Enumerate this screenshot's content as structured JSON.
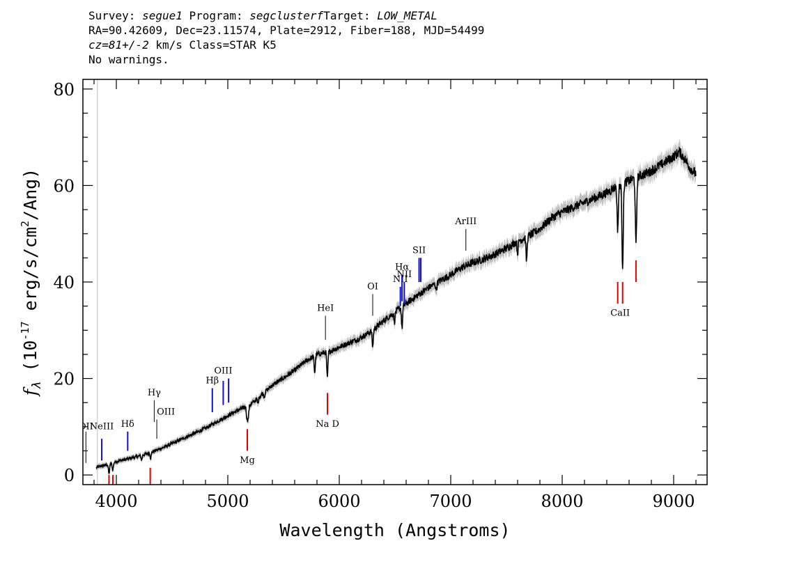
{
  "header": {
    "line1": {
      "survey_label": "Survey:",
      "survey": "segue1",
      "program_label": "Program:",
      "program": "segclusterf",
      "target_label": "Target:",
      "target": "LOW_METAL"
    },
    "line2": "RA=90.42609, Dec=23.11574, Plate=2912, Fiber=188, MJD=54499",
    "line3": {
      "cz": "cz=81+/-2",
      "rest": " km/s Class=STAR K5"
    },
    "line4": "No warnings."
  },
  "chart_data": {
    "type": "line",
    "title": "",
    "xlabel": "Wavelength (Angstroms)",
    "ylabel_prefix": "f",
    "ylabel_subscript": "λ",
    "ylabel_main": " (10",
    "ylabel_exponent": "-17",
    "ylabel_units": " erg/s/cm",
    "ylabel_exponent2": "2",
    "ylabel_tail": "/Ang)",
    "xlim": [
      3700,
      9300
    ],
    "ylim": [
      -2,
      82
    ],
    "x_ticks": [
      4000,
      5000,
      6000,
      7000,
      8000,
      9000
    ],
    "x_tick_labels": [
      "4000",
      "5000",
      "6000",
      "7000",
      "8000",
      "9000"
    ],
    "y_ticks": [
      0,
      20,
      40,
      60,
      80
    ],
    "y_tick_labels": [
      "0",
      "20",
      "40",
      "60",
      "80"
    ],
    "colors": {
      "spectrum": "#000000",
      "error_band": "#bfbfbf",
      "emission_blue": "#1010d0",
      "emission_black": "#000000",
      "absorption_red": "#e00000"
    },
    "series": [
      {
        "x": [
          3820,
          3850,
          3900,
          3950,
          4000,
          4100,
          4200,
          4300,
          4400,
          4500,
          4600,
          4700,
          4800,
          4900,
          5000,
          5100,
          5200,
          5300,
          5400,
          5500,
          5600,
          5700,
          5800,
          5900,
          6000,
          6100,
          6200,
          6300,
          6400,
          6500,
          6600,
          6700,
          6800,
          6900,
          7000,
          7100,
          7200,
          7300,
          7400,
          7500,
          7600,
          7700,
          7800,
          7900,
          8000,
          8100,
          8200,
          8300,
          8400,
          8500,
          8600,
          8700,
          8800,
          8900,
          9000,
          9050,
          9100,
          9150,
          9200
        ],
        "y": [
          1.5,
          1.8,
          2.0,
          2.3,
          2.8,
          3.3,
          3.9,
          4.6,
          5.5,
          6.5,
          7.6,
          8.6,
          9.7,
          11.0,
          12.3,
          13.5,
          14.5,
          16.6,
          18.6,
          20.1,
          21.7,
          23.6,
          25.0,
          25.5,
          26.5,
          27.5,
          28.5,
          30.0,
          32.0,
          33.8,
          35.5,
          37.2,
          38.8,
          40.2,
          41.5,
          43.0,
          44.0,
          44.8,
          45.8,
          47.0,
          48.5,
          49.5,
          51.0,
          53.2,
          54.5,
          55.5,
          56.5,
          57.5,
          58.5,
          60.0,
          61.0,
          62.0,
          63.0,
          64.5,
          66.0,
          67.0,
          65.5,
          63.5,
          62.5
        ]
      }
    ],
    "absorption_dips": [
      {
        "x": 3934,
        "depth": 2.0
      },
      {
        "x": 3968,
        "depth": 1.5
      },
      {
        "x": 4227,
        "depth": 1.0
      },
      {
        "x": 4308,
        "depth": 1.2
      },
      {
        "x": 5172,
        "depth": 2.5
      },
      {
        "x": 5183,
        "depth": 2.5
      },
      {
        "x": 5270,
        "depth": 1.2
      },
      {
        "x": 5328,
        "depth": 1.0
      },
      {
        "x": 5780,
        "depth": 3.5
      },
      {
        "x": 5893,
        "depth": 5.5
      },
      {
        "x": 6300,
        "depth": 3.5
      },
      {
        "x": 6495,
        "depth": 2.0
      },
      {
        "x": 6563,
        "depth": 4.5
      },
      {
        "x": 6870,
        "depth": 1.5
      },
      {
        "x": 7600,
        "depth": 2.5
      },
      {
        "x": 7680,
        "depth": 5.0
      },
      {
        "x": 8498,
        "depth": 9.0
      },
      {
        "x": 8542,
        "depth": 17.0
      },
      {
        "x": 8662,
        "depth": 14.0
      }
    ],
    "emission_lines": [
      {
        "label": "OII",
        "x": 3727,
        "top": 9.0,
        "bottom": 2.5,
        "color": "black",
        "label_y": 9.5
      },
      {
        "label": "NeIII",
        "x": 3869,
        "top": 7.5,
        "bottom": 3.0,
        "color": "blue",
        "label_y": 9.5
      },
      {
        "label": "Hδ",
        "x": 4102,
        "top": 9.0,
        "bottom": 5.0,
        "color": "blue",
        "label_y": 10.0
      },
      {
        "label": "Hγ",
        "x": 4340,
        "top": 15.5,
        "bottom": 11.0,
        "color": "black",
        "label_y": 16.5
      },
      {
        "label": "OIII",
        "x": 4363,
        "top": 11.5,
        "bottom": 7.5,
        "color": "black",
        "label_y": 12.5
      },
      {
        "label": "Hβ",
        "x": 4861,
        "top": 18.0,
        "bottom": 13.0,
        "color": "blue",
        "label_y": 19.0
      },
      {
        "label": "OIII",
        "x": 4959,
        "top": 19.5,
        "bottom": 14.5,
        "color": "blue",
        "label_y": 21.0
      },
      {
        "label": "",
        "x": 5007,
        "top": 20.0,
        "bottom": 15.0,
        "color": "blue",
        "label_y": 0
      },
      {
        "label": "HeI",
        "x": 5876,
        "top": 33.0,
        "bottom": 28.0,
        "color": "black",
        "label_y": 34.0
      },
      {
        "label": "OI",
        "x": 6300,
        "top": 37.5,
        "bottom": 33.0,
        "color": "black",
        "label_y": 38.5
      },
      {
        "label": "NII",
        "x": 6548,
        "top": 39.0,
        "bottom": 35.0,
        "color": "blue",
        "label_y": 40.0
      },
      {
        "label": "Hα",
        "x": 6563,
        "top": 41.5,
        "bottom": 36.0,
        "color": "blue",
        "label_y": 42.5
      },
      {
        "label": "NII",
        "x": 6583,
        "top": 40.0,
        "bottom": 35.5,
        "color": "blue",
        "label_y": 41.0
      },
      {
        "label": "SII",
        "x": 6716,
        "top": 45.0,
        "bottom": 40.0,
        "color": "blue",
        "label_y": 46.0
      },
      {
        "label": "",
        "x": 6731,
        "top": 45.0,
        "bottom": 40.0,
        "color": "blue",
        "label_y": 0
      },
      {
        "label": "ArIII",
        "x": 7136,
        "top": 51.0,
        "bottom": 46.5,
        "color": "black",
        "label_y": 52.0
      }
    ],
    "absorption_lines": [
      {
        "label": "",
        "x": 3934,
        "top": 0.0,
        "bottom": -2.0,
        "color": "red"
      },
      {
        "label": "",
        "x": 3969,
        "top": 0.0,
        "bottom": -2.0,
        "color": "red"
      },
      {
        "label": "",
        "x": 4304,
        "top": 1.5,
        "bottom": -2.0,
        "color": "red"
      },
      {
        "label": "Mg",
        "x": 5175,
        "top": 9.5,
        "bottom": 5.0,
        "color": "red",
        "label_y": 2.5
      },
      {
        "label": "Na D",
        "x": 5894,
        "top": 17.0,
        "bottom": 12.5,
        "color": "red",
        "label_y": 10.0
      },
      {
        "label": "CaII",
        "x": 8498,
        "top": 40.0,
        "bottom": 35.5,
        "color": "red",
        "label_y": 33.0
      },
      {
        "label": "",
        "x": 8542,
        "top": 40.0,
        "bottom": 35.5,
        "color": "red",
        "label_y": 0
      },
      {
        "label": "",
        "x": 8662,
        "top": 44.5,
        "bottom": 40.0,
        "color": "red",
        "label_y": 0
      }
    ],
    "vertical_marker": {
      "x": 3830,
      "color": "#c8c8c8"
    }
  }
}
